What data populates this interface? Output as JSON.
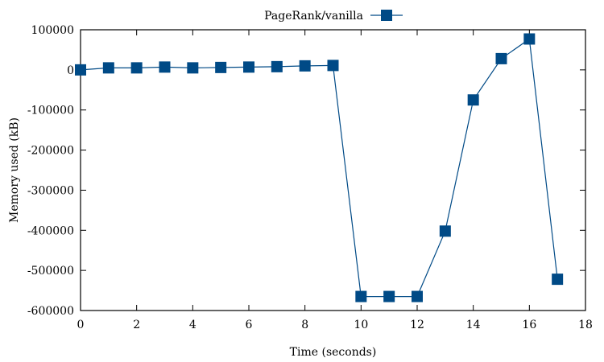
{
  "chart_data": {
    "type": "line",
    "xlabel": "Time (seconds)",
    "ylabel": "Memory used (kB)",
    "xlim": [
      0,
      18
    ],
    "ylim": [
      -600000,
      100000
    ],
    "x_ticks": [
      0,
      2,
      4,
      6,
      8,
      10,
      12,
      14,
      16,
      18
    ],
    "y_ticks": [
      100000,
      0,
      -100000,
      -200000,
      -300000,
      -400000,
      -500000,
      -600000
    ],
    "grid": false,
    "legend_position": "top-center",
    "series": [
      {
        "name": "PageRank/vanilla",
        "color": "#004a86",
        "marker": "square",
        "x": [
          0,
          1,
          2,
          3,
          4,
          5,
          6,
          7,
          8,
          9,
          10,
          11,
          12,
          13,
          14,
          15,
          16,
          17
        ],
        "y": [
          0,
          5000,
          5000,
          7000,
          5000,
          6000,
          7000,
          8000,
          10000,
          11000,
          -565000,
          -565000,
          -565000,
          -402000,
          -75000,
          28000,
          77000,
          -522000
        ]
      }
    ]
  }
}
